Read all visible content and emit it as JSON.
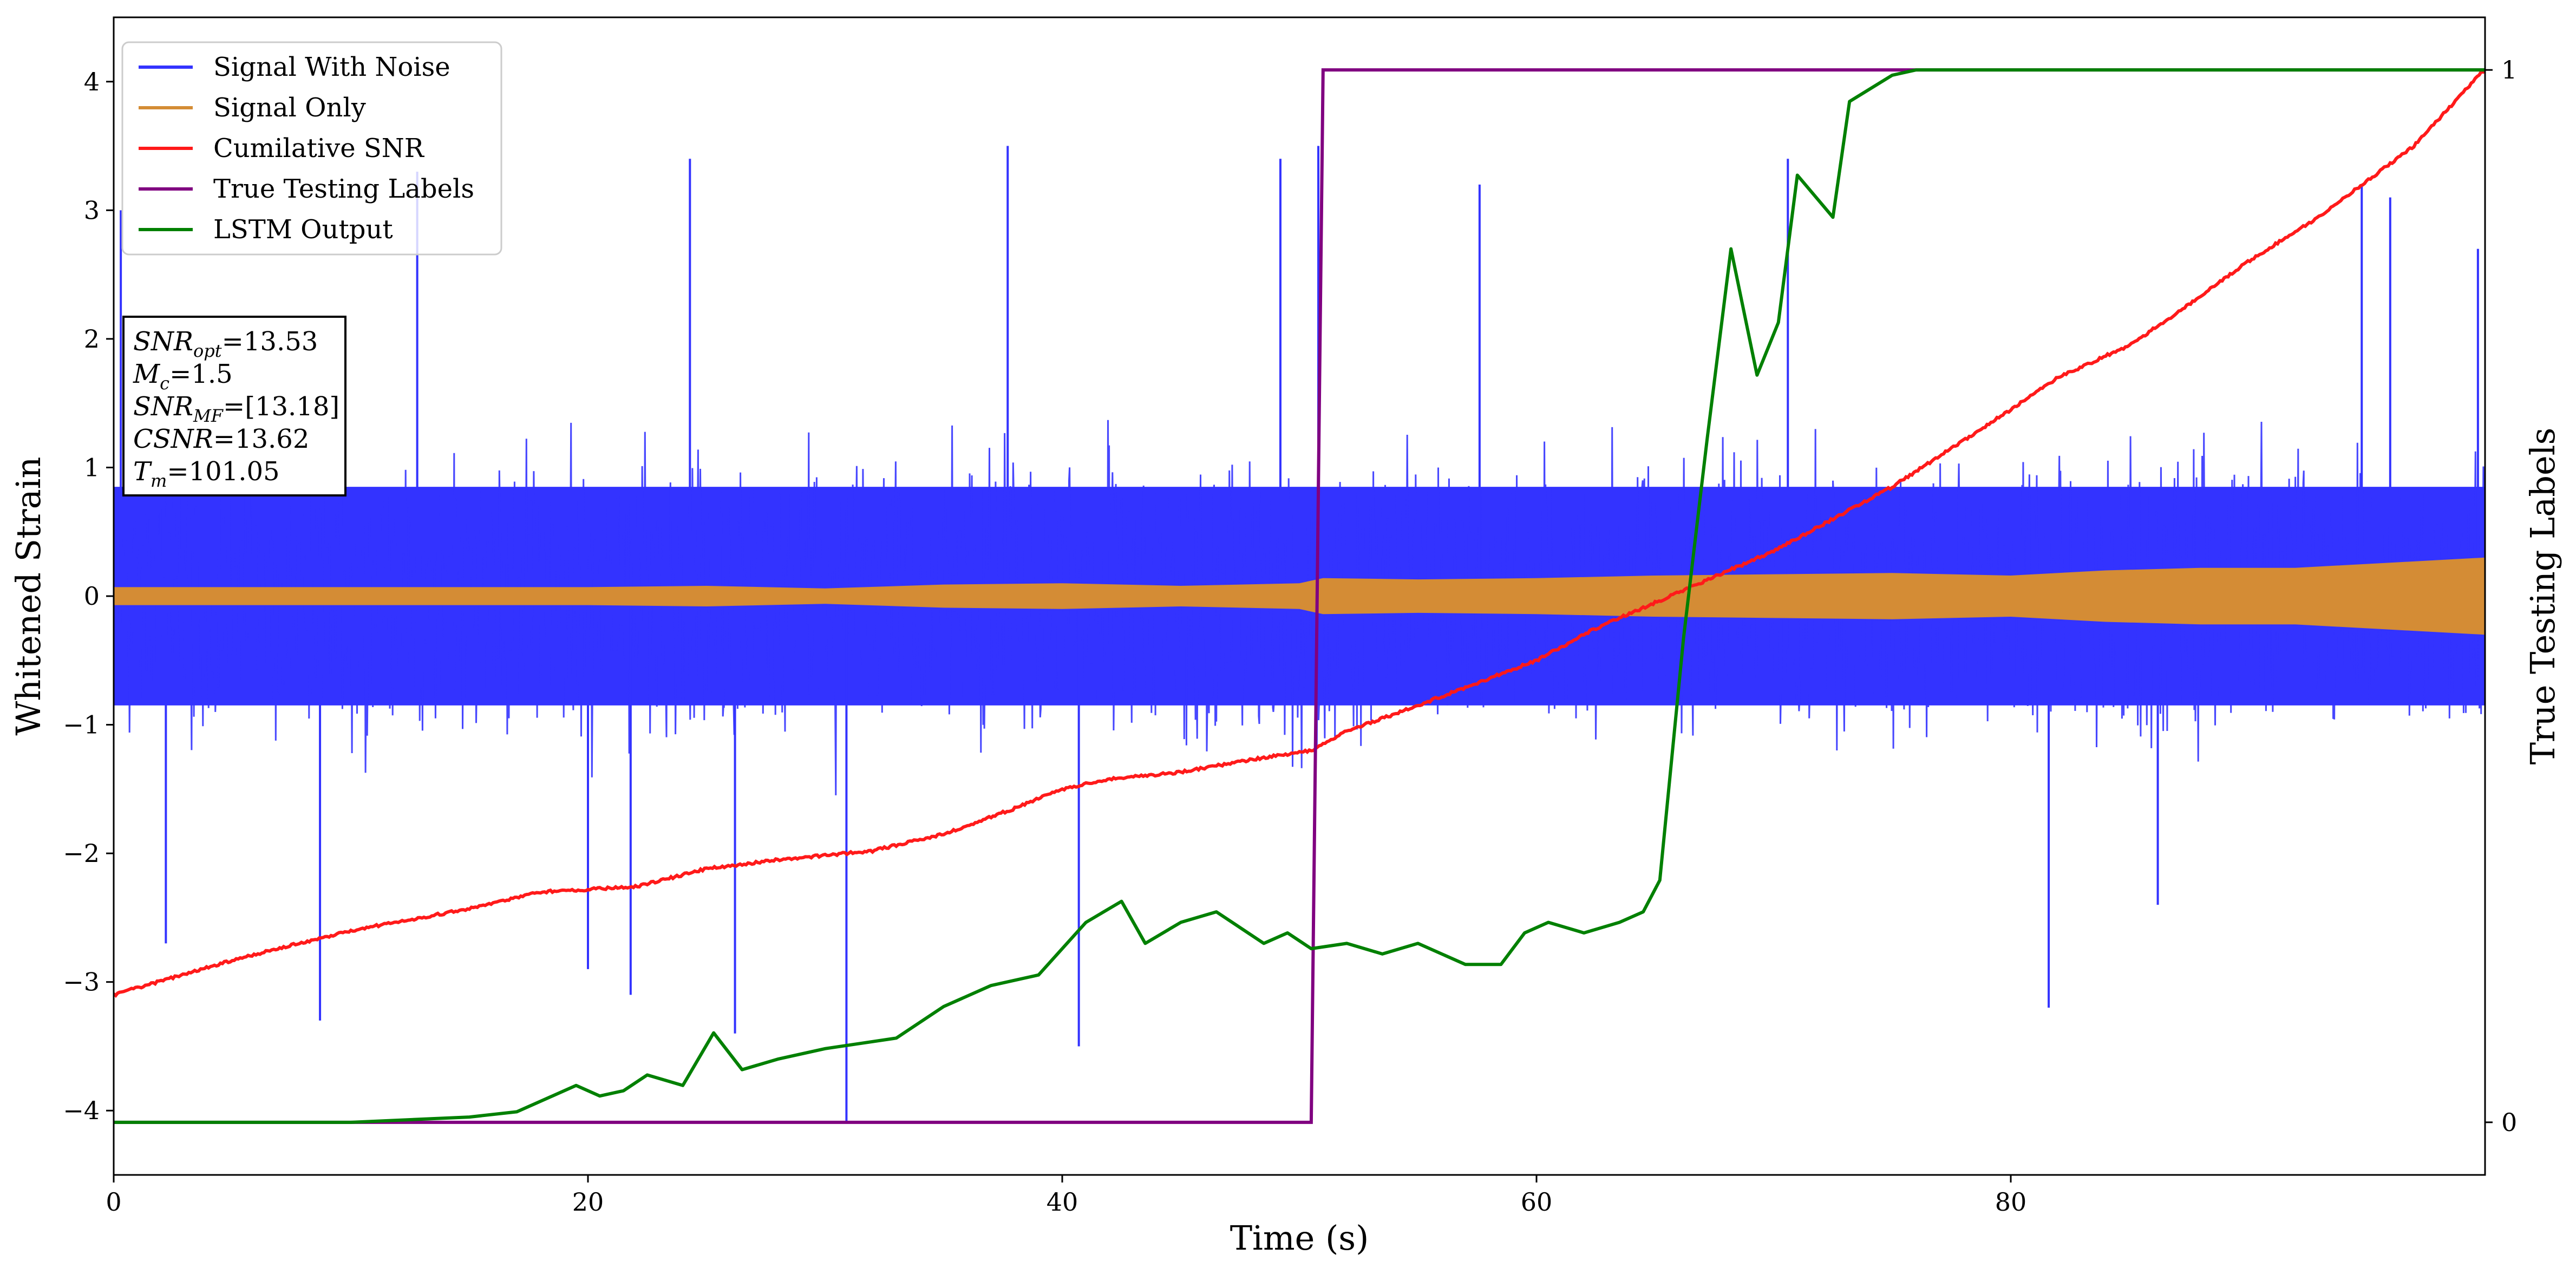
{
  "chart_data": {
    "type": "line",
    "xlabel": "Time (s)",
    "ylabel": "Whitened Strain",
    "y2label": "True Testing Labels",
    "xlim": [
      0,
      100
    ],
    "ylim": [
      -4.5,
      4.5
    ],
    "y2lim": [
      -0.05,
      1.05
    ],
    "x_ticks": [
      0,
      20,
      40,
      60,
      80
    ],
    "y_ticks": [
      -4,
      -3,
      -2,
      -1,
      0,
      1,
      2,
      3,
      4
    ],
    "y2_ticks": [
      0,
      1
    ],
    "x_tick_labels": [
      "0",
      "20",
      "40",
      "60",
      "80"
    ],
    "y_tick_labels": [
      "−4",
      "−3",
      "−2",
      "−1",
      "0",
      "1",
      "2",
      "3",
      "4"
    ],
    "y2_tick_labels": [
      "0",
      "1"
    ],
    "grid": false,
    "legend_position": "top-left",
    "colors": {
      "signal_with_noise": "#3333ff",
      "signal_only": "#d48c35",
      "cumulative_snr": "#ff1a1a",
      "true_labels": "#800080",
      "lstm_output": "#008000"
    },
    "series": [
      {
        "name": "Signal With Noise",
        "axis": "left",
        "style": "noise",
        "band_inner": [
          [
            0,
            0.85
          ],
          [
            5,
            0.85
          ],
          [
            10,
            0.85
          ],
          [
            15,
            0.85
          ],
          [
            20,
            0.85
          ],
          [
            25,
            0.85
          ],
          [
            30,
            0.85
          ],
          [
            35,
            0.85
          ],
          [
            40,
            0.85
          ],
          [
            45,
            0.85
          ],
          [
            50,
            0.85
          ],
          [
            55,
            0.85
          ],
          [
            60,
            0.85
          ],
          [
            65,
            0.85
          ],
          [
            70,
            0.85
          ],
          [
            75,
            0.85
          ],
          [
            80,
            0.85
          ],
          [
            85,
            0.85
          ],
          [
            90,
            0.85
          ],
          [
            95,
            0.85
          ],
          [
            100,
            0.85
          ]
        ],
        "typical_range": [
          -1.9,
          2.3
        ],
        "extremes": [
          [
            0.3,
            3.0
          ],
          [
            2.2,
            -2.7
          ],
          [
            8.7,
            -3.3
          ],
          [
            12.8,
            3.3
          ],
          [
            20.0,
            -2.9
          ],
          [
            21.8,
            -3.1
          ],
          [
            24.3,
            3.4
          ],
          [
            26.2,
            -3.4
          ],
          [
            30.9,
            -4.1
          ],
          [
            37.7,
            3.5
          ],
          [
            40.7,
            -3.5
          ],
          [
            49.2,
            3.4
          ],
          [
            50.8,
            3.5
          ],
          [
            57.6,
            3.2
          ],
          [
            70.6,
            3.4
          ],
          [
            81.6,
            -3.2
          ],
          [
            86.2,
            -2.4
          ],
          [
            94.8,
            3.2
          ],
          [
            96.0,
            3.1
          ],
          [
            99.7,
            2.7
          ]
        ]
      },
      {
        "name": "Signal Only",
        "axis": "left",
        "style": "envelope",
        "envelope": [
          [
            0,
            0.07
          ],
          [
            10,
            0.07
          ],
          [
            20,
            0.07
          ],
          [
            25,
            0.08
          ],
          [
            30,
            0.06
          ],
          [
            35,
            0.09
          ],
          [
            40,
            0.1
          ],
          [
            45,
            0.08
          ],
          [
            50,
            0.1
          ],
          [
            51,
            0.14
          ],
          [
            55,
            0.13
          ],
          [
            60,
            0.14
          ],
          [
            65,
            0.16
          ],
          [
            70,
            0.17
          ],
          [
            75,
            0.18
          ],
          [
            80,
            0.16
          ],
          [
            84,
            0.2
          ],
          [
            88,
            0.22
          ],
          [
            92,
            0.22
          ],
          [
            96,
            0.26
          ],
          [
            100,
            0.3
          ]
        ]
      },
      {
        "name": "Cumilative SNR",
        "axis": "left",
        "points": [
          [
            0,
            -3.1
          ],
          [
            5,
            -2.83
          ],
          [
            10,
            -2.6
          ],
          [
            15,
            -2.43
          ],
          [
            18,
            -2.3
          ],
          [
            22,
            -2.26
          ],
          [
            25,
            -2.12
          ],
          [
            28,
            -2.05
          ],
          [
            32,
            -1.98
          ],
          [
            35,
            -1.85
          ],
          [
            38,
            -1.65
          ],
          [
            40,
            -1.5
          ],
          [
            42,
            -1.42
          ],
          [
            45,
            -1.37
          ],
          [
            48,
            -1.27
          ],
          [
            50.5,
            -1.2
          ],
          [
            52,
            -1.05
          ],
          [
            55,
            -0.85
          ],
          [
            60,
            -0.5
          ],
          [
            62.5,
            -0.25
          ],
          [
            65,
            -0.05
          ],
          [
            70,
            0.35
          ],
          [
            75,
            0.85
          ],
          [
            80,
            1.45
          ],
          [
            82,
            1.7
          ],
          [
            85,
            1.95
          ],
          [
            87,
            2.2
          ],
          [
            90,
            2.6
          ],
          [
            93,
            2.95
          ],
          [
            97,
            3.5
          ],
          [
            100,
            4.1
          ]
        ]
      },
      {
        "name": "True Testing Labels",
        "axis": "right",
        "points": [
          [
            0,
            0
          ],
          [
            50.5,
            0
          ],
          [
            51.0,
            1
          ],
          [
            100,
            1
          ]
        ]
      },
      {
        "name": "LSTM Output",
        "axis": "right",
        "points": [
          [
            0,
            0.0
          ],
          [
            10,
            0.0
          ],
          [
            15,
            0.005
          ],
          [
            17,
            0.01
          ],
          [
            18.5,
            0.025
          ],
          [
            19.5,
            0.035
          ],
          [
            20.5,
            0.025
          ],
          [
            21.5,
            0.03
          ],
          [
            22.5,
            0.045
          ],
          [
            24,
            0.035
          ],
          [
            25.3,
            0.085
          ],
          [
            26.5,
            0.05
          ],
          [
            28,
            0.06
          ],
          [
            30,
            0.07
          ],
          [
            31.5,
            0.075
          ],
          [
            33,
            0.08
          ],
          [
            35,
            0.11
          ],
          [
            37,
            0.13
          ],
          [
            39,
            0.14
          ],
          [
            41,
            0.19
          ],
          [
            42.5,
            0.21
          ],
          [
            43.5,
            0.17
          ],
          [
            45,
            0.19
          ],
          [
            46.5,
            0.2
          ],
          [
            48.5,
            0.17
          ],
          [
            49.5,
            0.18
          ],
          [
            50.5,
            0.165
          ],
          [
            52,
            0.17
          ],
          [
            53.5,
            0.16
          ],
          [
            55,
            0.17
          ],
          [
            57,
            0.15
          ],
          [
            58.5,
            0.15
          ],
          [
            59.5,
            0.18
          ],
          [
            60.5,
            0.19
          ],
          [
            62,
            0.18
          ],
          [
            63.5,
            0.19
          ],
          [
            64.5,
            0.2
          ],
          [
            65.2,
            0.23
          ],
          [
            66.2,
            0.46
          ],
          [
            67.2,
            0.65
          ],
          [
            68.2,
            0.83
          ],
          [
            69.3,
            0.71
          ],
          [
            70.2,
            0.76
          ],
          [
            71.0,
            0.9
          ],
          [
            72.5,
            0.86
          ],
          [
            73.2,
            0.97
          ],
          [
            75.0,
            0.995
          ],
          [
            76.0,
            1.0
          ],
          [
            80,
            1.0
          ],
          [
            100,
            1.0
          ]
        ]
      }
    ],
    "annotation": [
      {
        "main": "SNR",
        "sub": "opt",
        "value": "=13.53"
      },
      {
        "main": "M",
        "sub": "c",
        "value": "=1.5"
      },
      {
        "main": "SNR",
        "sub": "MF",
        "value": "=[13.18]"
      },
      {
        "main": "CSNR",
        "sub": "",
        "value": "=13.62"
      },
      {
        "main": "T",
        "sub": "m",
        "value": "=101.05"
      }
    ]
  }
}
